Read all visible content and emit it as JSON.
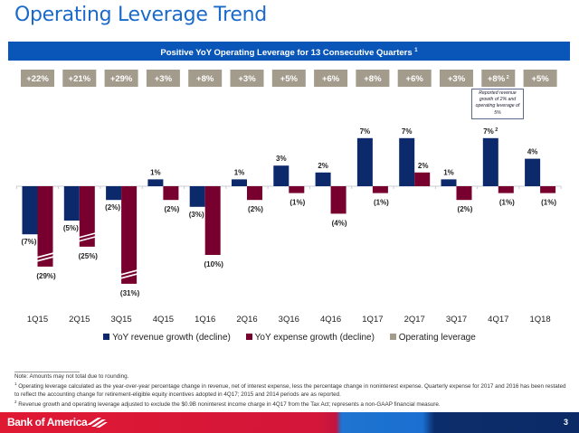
{
  "page": {
    "title": "Operating Leverage Trend",
    "banner": "Positive YoY Operating Leverage for 13 Consecutive Quarters",
    "banner_footnote": "1",
    "callout": "Reported revenue growth of 2% and operating leverage of 5%",
    "page_number": "3",
    "brand": "Bank of America"
  },
  "notes": [
    {
      "mark": "",
      "text": "Note: Amounts may not total due to rounding."
    },
    {
      "mark": "1",
      "text": "Operating leverage calculated as the year-over-year percentage change in revenue, net of interest expense, less the percentage change in noninterest expense. Quarterly expense for 2017 and 2016 has been restated to reflect the accounting change for retirement-eligible equity incentives adopted in 4Q17; 2015 and 2014 periods are as reported."
    },
    {
      "mark": "2",
      "text": "Revenue growth and operating leverage adjusted to exclude the $0.9B noninterest income charge in 4Q17 from the Tax Act; represents a non-GAAP financial measure."
    }
  ],
  "colors": {
    "revenue": "#0c2a6b",
    "expense": "#78002e",
    "leverage": "#a39b8c",
    "banner": "#0a56b8",
    "title": "#1b6ac9"
  },
  "chart_data": {
    "type": "bar",
    "title": "Operating Leverage Trend",
    "xlabel": "",
    "ylabel": "",
    "categories": [
      "1Q15",
      "2Q15",
      "3Q15",
      "4Q15",
      "1Q16",
      "2Q16",
      "3Q16",
      "4Q16",
      "1Q17",
      "2Q17",
      "3Q17",
      "4Q17",
      "1Q18"
    ],
    "series": [
      {
        "name": "YoY revenue growth (decline)",
        "values": [
          -7,
          -5,
          -2,
          1,
          -3,
          1,
          3,
          2,
          7,
          7,
          1,
          7,
          4
        ],
        "labels": [
          "(7%)",
          "(5%)",
          "(2%)",
          "1%",
          "(3%)",
          "1%",
          "3%",
          "2%",
          "7%",
          "7%",
          "1%",
          "7%",
          "4%"
        ]
      },
      {
        "name": "YoY expense growth (decline)",
        "values": [
          -29,
          -25,
          -31,
          -2,
          -10,
          -2,
          -1,
          -4,
          -1,
          2,
          -2,
          -1,
          -1
        ],
        "labels": [
          "(29%)",
          "(25%)",
          "(31%)",
          "(2%)",
          "(10%)",
          "(2%)",
          "(1%)",
          "(4%)",
          "(1%)",
          "2%",
          "(2%)",
          "(1%)",
          "(1%)"
        ],
        "axis_break": [
          true,
          true,
          true,
          false,
          false,
          false,
          false,
          false,
          false,
          false,
          false,
          false,
          false
        ]
      },
      {
        "name": "Operating leverage",
        "values": [
          22,
          21,
          29,
          3,
          8,
          3,
          5,
          6,
          8,
          6,
          3,
          8,
          5
        ],
        "labels": [
          "+22%",
          "+21%",
          "+29%",
          "+3%",
          "+8%",
          "+3%",
          "+5%",
          "+6%",
          "+8%",
          "+6%",
          "+3%",
          "+8%",
          "+5%"
        ]
      }
    ],
    "footnote_markers": {
      "4Q17": "2"
    },
    "legend": [
      "YoY revenue growth (decline)",
      "YoY expense growth (decline)",
      "Operating leverage"
    ],
    "legend_position": "bottom",
    "grid": false
  }
}
